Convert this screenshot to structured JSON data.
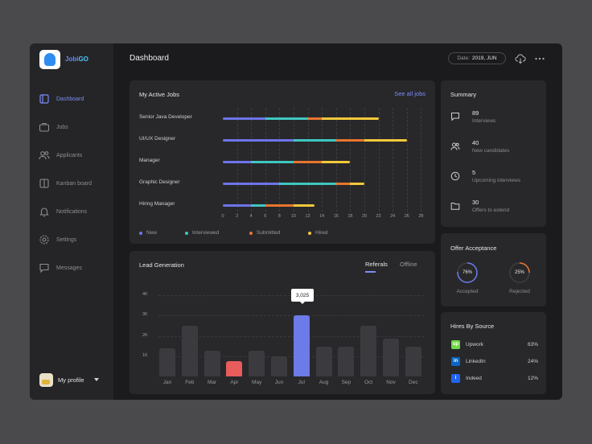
{
  "brand": {
    "name_a": "Jobi",
    "name_b": "GO"
  },
  "header": {
    "title": "Dashboard",
    "date_label": "Date:",
    "date_value": "2019, JUN"
  },
  "sidebar": {
    "items": [
      {
        "label": "Dashboard",
        "icon": "dashboard-icon",
        "active": true
      },
      {
        "label": "Jobs",
        "icon": "briefcase-icon"
      },
      {
        "label": "Applicants",
        "icon": "users-icon"
      },
      {
        "label": "Kanban board",
        "icon": "kanban-icon"
      },
      {
        "label": "Notifications",
        "icon": "bell-icon"
      },
      {
        "label": "Settings",
        "icon": "gear-icon"
      },
      {
        "label": "Messages",
        "icon": "message-icon"
      }
    ],
    "profile_label": "My profile"
  },
  "colors": {
    "new": "#6e74e8",
    "interviewed": "#3fc7c0",
    "submitted": "#e8752e",
    "hired": "#f2c93a",
    "accent": "#7b8cf7",
    "highlight_bar": "#6c7be8",
    "low_bar": "#e85c5c"
  },
  "active_jobs": {
    "title": "My Active Jobs",
    "see_all": "See all jobs",
    "legend": [
      "New",
      "Interviewed",
      "Submitted",
      "Hired"
    ],
    "ticks": [
      "0",
      "2",
      "4",
      "6",
      "8",
      "10",
      "12",
      "14",
      "16",
      "18",
      "20",
      "22",
      "24",
      "26",
      "28"
    ],
    "jobs": [
      {
        "name": "Senior Java Developer",
        "segments": [
          6,
          6,
          2,
          8
        ]
      },
      {
        "name": "UI/UX Designer",
        "segments": [
          10,
          6,
          4,
          6
        ]
      },
      {
        "name": "Manager",
        "segments": [
          4,
          6,
          4,
          4
        ]
      },
      {
        "name": "Graphic Designer",
        "segments": [
          8,
          8,
          2,
          2
        ]
      },
      {
        "name": "Hiring Manager",
        "segments": [
          4,
          2,
          4,
          3
        ]
      }
    ]
  },
  "chart_data": {
    "type": "bar",
    "title": "Lead Generation",
    "categories": [
      "Jan",
      "Feb",
      "Mar",
      "Apr",
      "May",
      "Jun",
      "Jul",
      "Aug",
      "Sep",
      "Oct",
      "Nov",
      "Dec"
    ],
    "values": [
      1400,
      2500,
      1250,
      750,
      1250,
      1000,
      3025,
      1450,
      1450,
      2500,
      1850,
      1450
    ],
    "ylim": [
      0,
      4000
    ],
    "yticks": [
      "1K",
      "2K",
      "3K",
      "4K"
    ],
    "highlight_index": 6,
    "highlight_label": "3,025",
    "low_index": 3,
    "grid": true
  },
  "lead_tabs": {
    "active": "Referals",
    "inactive": "Offline"
  },
  "summary": {
    "title": "Summary",
    "items": [
      {
        "value": "89",
        "label": "Interviews",
        "icon": "chat-icon"
      },
      {
        "value": "40",
        "label": "New candidates",
        "icon": "users-icon"
      },
      {
        "value": "5",
        "label": "Upcoming interviews",
        "icon": "clock-icon"
      },
      {
        "value": "30",
        "label": "Offers to extend",
        "icon": "folder-icon"
      }
    ]
  },
  "offer": {
    "title": "Offer Acceptance",
    "accepted": {
      "value": "76%",
      "fraction": 0.76,
      "label": "Accepted",
      "color": "#6c7be8"
    },
    "rejected": {
      "value": "25%",
      "fraction": 0.25,
      "label": "Rejected",
      "color": "#e8752e"
    }
  },
  "hires": {
    "title": "Hires By Source",
    "sources": [
      {
        "name": "Upwork",
        "pct": "63%",
        "color": "#6fda44",
        "glyph": "up"
      },
      {
        "name": "LinkedIn",
        "pct": "24%",
        "color": "#0a66c2",
        "glyph": "in"
      },
      {
        "name": "Indeed",
        "pct": "12%",
        "color": "#2164f3",
        "glyph": "i"
      }
    ]
  }
}
